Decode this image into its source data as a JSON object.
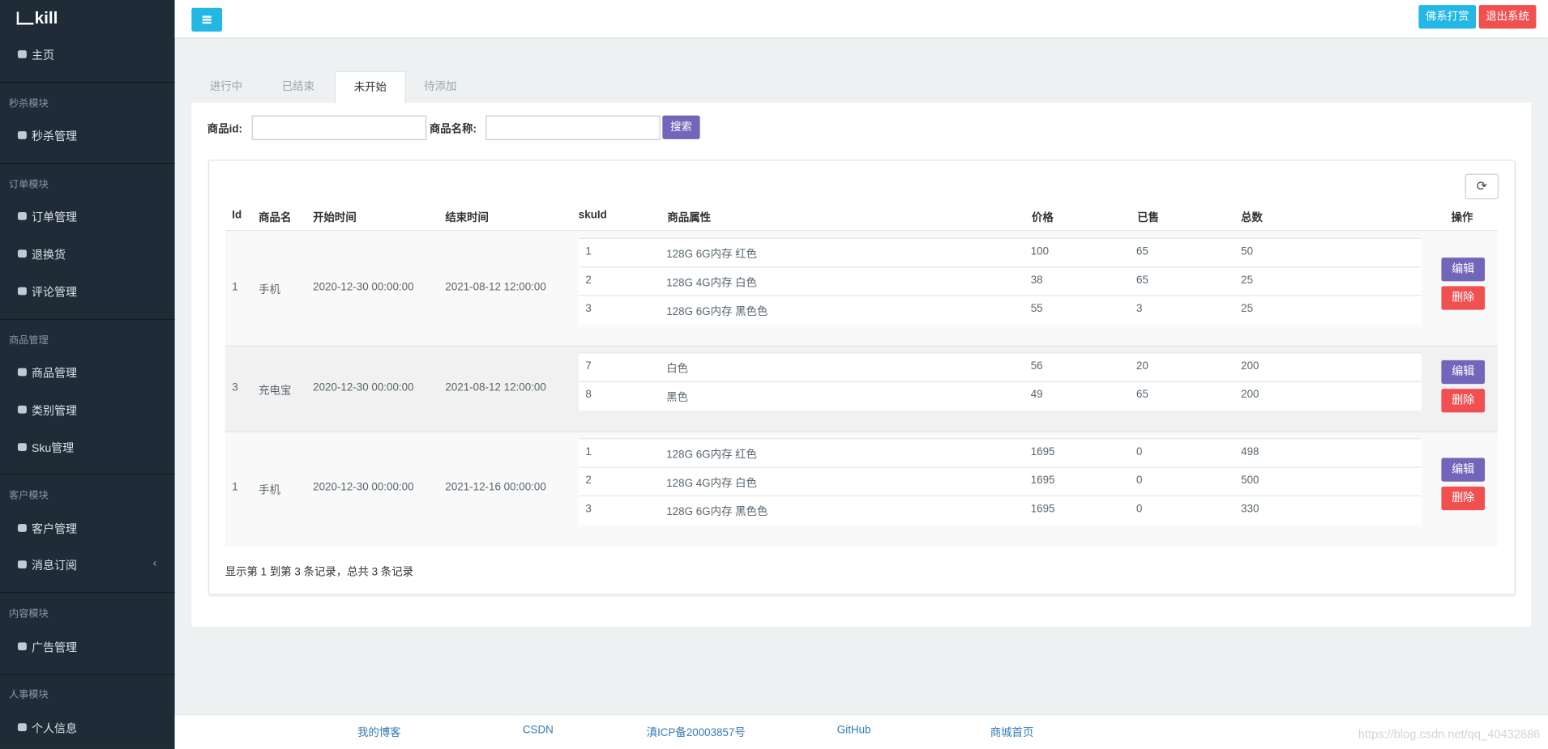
{
  "sidebar": {
    "logo": "kill",
    "items": [
      {
        "type": "link",
        "label": "主页"
      },
      {
        "type": "section",
        "label": "秒杀模块"
      },
      {
        "type": "link",
        "label": "秒杀管理"
      },
      {
        "type": "section",
        "label": "订单模块"
      },
      {
        "type": "link",
        "label": "订单管理"
      },
      {
        "type": "link",
        "label": "退换货"
      },
      {
        "type": "link",
        "label": "评论管理"
      },
      {
        "type": "section",
        "label": "商品管理"
      },
      {
        "type": "link",
        "label": "商品管理"
      },
      {
        "type": "link",
        "label": "类别管理"
      },
      {
        "type": "link",
        "label": "Sku管理"
      },
      {
        "type": "section",
        "label": "客户模块"
      },
      {
        "type": "link",
        "label": "客户管理"
      },
      {
        "type": "link",
        "label": "消息订阅"
      },
      {
        "type": "section",
        "label": "内容模块"
      },
      {
        "type": "link",
        "label": "广告管理"
      },
      {
        "type": "section",
        "label": "人事模块"
      },
      {
        "type": "link",
        "label": "个人信息"
      }
    ]
  },
  "header": {
    "buttons": [
      "佛系打赏",
      "退出系统"
    ]
  },
  "tabs": [
    "进行中",
    "已结束",
    "未开始",
    "待添加"
  ],
  "search": {
    "labels": [
      "商品id:",
      "商品名称:"
    ],
    "button": "搜索"
  },
  "table": {
    "headers": [
      "Id",
      "商品名",
      "开始时间",
      "结束时间",
      "skuId",
      "商品属性",
      "价格",
      "已售",
      "总数",
      "操作"
    ],
    "actions": [
      "编辑",
      "删除"
    ],
    "rows": [
      {
        "id": 1,
        "name": "手机",
        "start": "2020-12-30 00:00:00",
        "end": "2021-08-12 12:00:00",
        "skus": [
          [
            1,
            "128G 6G内存 红色",
            100,
            65,
            50
          ],
          [
            2,
            "128G 4G内存 白色",
            38,
            65,
            25
          ],
          [
            3,
            "128G 6G内存 黑色色",
            55,
            3,
            25
          ]
        ]
      },
      {
        "id": 3,
        "name": "充电宝",
        "start": "2020-12-30 00:00:00",
        "end": "2021-08-12 12:00:00",
        "skus": [
          [
            7,
            "白色",
            56,
            20,
            200
          ],
          [
            8,
            "黑色",
            49,
            65,
            200
          ]
        ]
      },
      {
        "id": 1,
        "name": "手机",
        "start": "2020-12-30 00:00:00",
        "end": "2021-12-16 00:00:00",
        "skus": [
          [
            1,
            "128G 6G内存 红色",
            1695,
            0,
            498
          ],
          [
            2,
            "128G 4G内存 白色",
            1695,
            0,
            500
          ],
          [
            3,
            "128G 6G内存 黑色色",
            1695,
            0,
            330
          ]
        ]
      }
    ]
  },
  "pagination": "显示第 1 到第 3 条记录，总共 3 条记录",
  "footer": {
    "links": [
      "我的博客",
      "CSDN",
      "滇ICP备20003857号",
      "GitHub",
      "商城首页"
    ],
    "watermark": "https://blog.csdn.net/qq_40432886"
  }
}
